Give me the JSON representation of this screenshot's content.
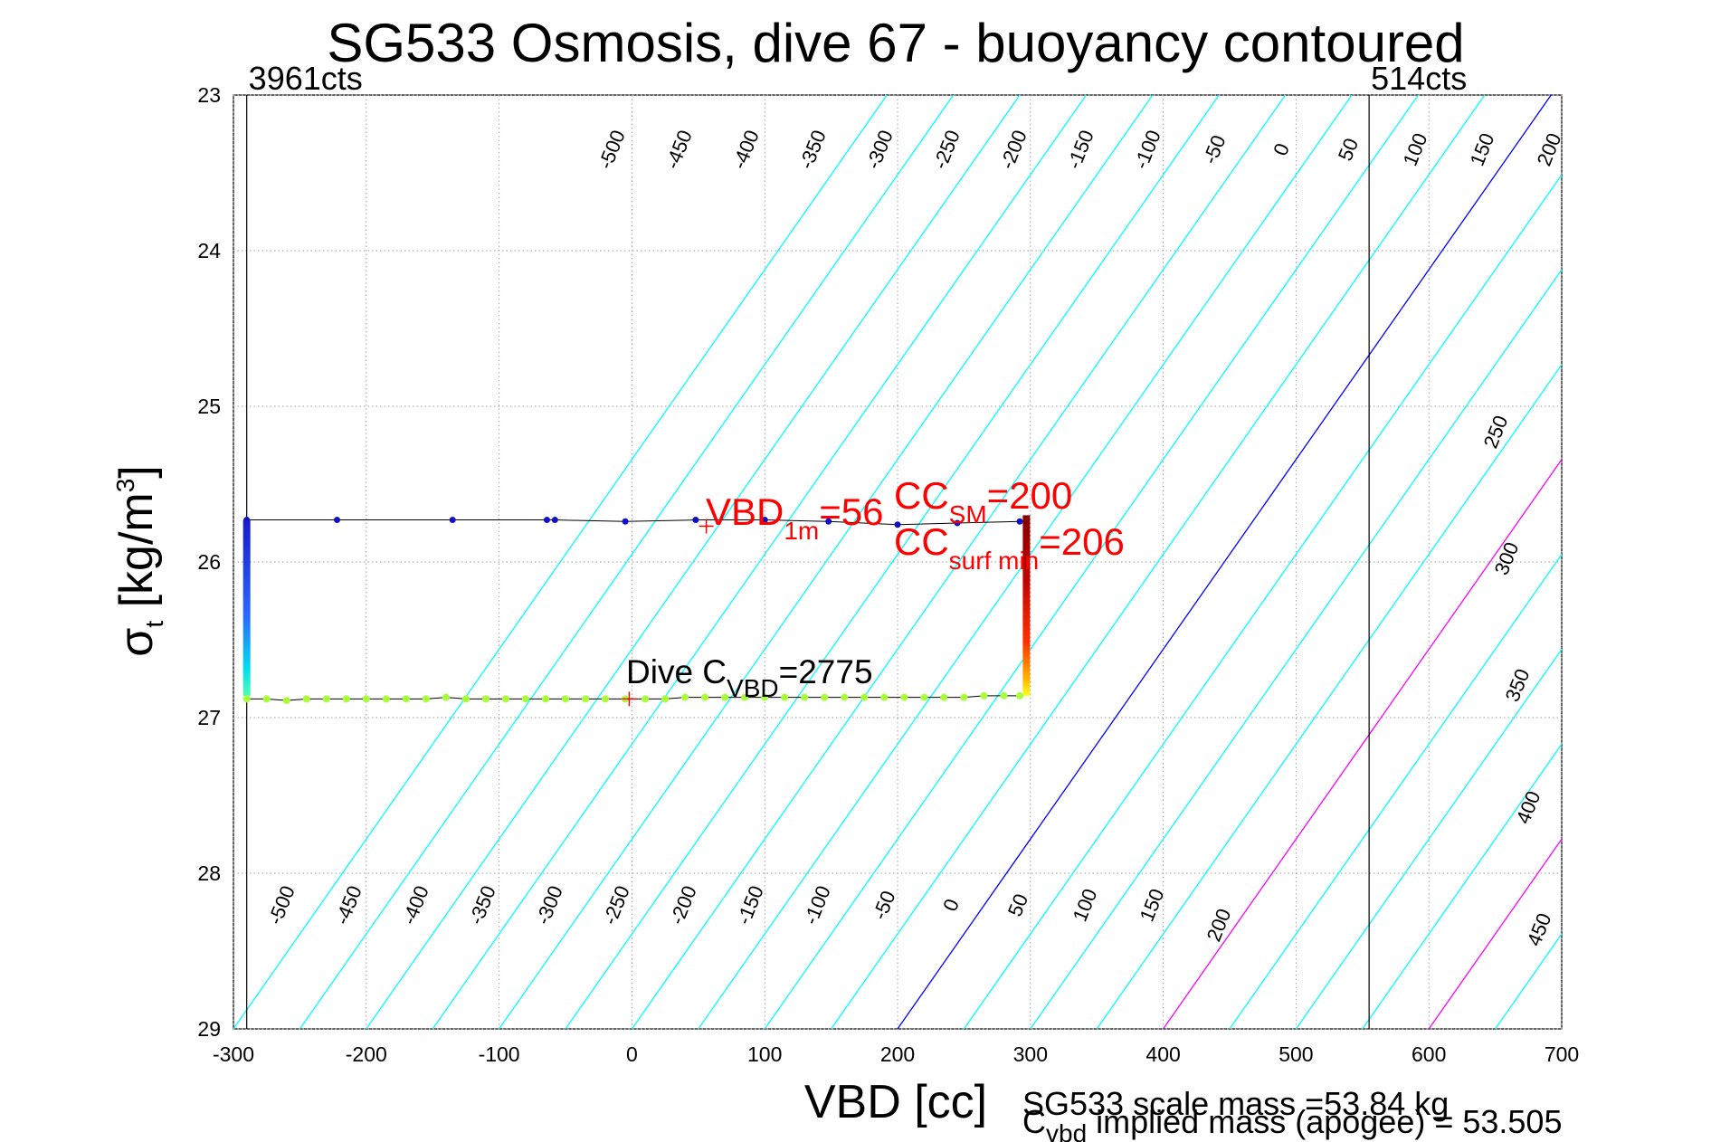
{
  "chart_data": {
    "type": "scatter",
    "title": "SG533 Osmosis, dive 67 - buoyancy contoured",
    "xlabel": "VBD [cc]",
    "ylabel": "σ",
    "ylabel_sub": "t",
    "ylabel_unit": " [kg/m",
    "ylabel_sup": "3",
    "ylabel_close": "]",
    "xlim": [
      -300,
      700
    ],
    "ylim": [
      23,
      29
    ],
    "y_reversed": true,
    "grid": true,
    "xticks": [
      "-300",
      "-200",
      "-100",
      "0",
      "100",
      "200",
      "300",
      "400",
      "500",
      "600",
      "700"
    ],
    "yticks": [
      "23",
      "24",
      "25",
      "26",
      "27",
      "28",
      "29"
    ],
    "vertical_lines": [
      {
        "x": -290,
        "label": "3961cts"
      },
      {
        "x": 555,
        "label": "514cts"
      }
    ],
    "contours": {
      "x_at_29": [
        -300,
        -250,
        -200,
        -150,
        -100,
        -50,
        0,
        50,
        100,
        150,
        200,
        250,
        300,
        350,
        400,
        450,
        500,
        550,
        600,
        650,
        700
      ],
      "slope_cc_per_sigma": -82,
      "colors": {
        "default": "#00ffff",
        "zero": "#0000ff",
        "pos_lines": "#ff00ff"
      },
      "top_labels": [
        "-500",
        "-450",
        "-400",
        "-350",
        "-300",
        "-250",
        "-200",
        "-150",
        "-100",
        "-50",
        "0",
        "50",
        "100",
        "150",
        "200"
      ],
      "right_labels": [
        "250",
        "300",
        "350",
        "400",
        "450"
      ],
      "bottom_labels": [
        "-500",
        "-450",
        "-400",
        "-350",
        "-300",
        "-250",
        "-200",
        "-150",
        "-100",
        "-50",
        "0",
        "50",
        "100",
        "150",
        "200"
      ]
    },
    "series": [
      {
        "points": [
          [
            -290,
            25.73
          ],
          [
            -222,
            25.73
          ],
          [
            -135,
            25.73
          ],
          [
            -64,
            25.73
          ],
          [
            -58,
            25.73
          ],
          [
            -5,
            25.74
          ],
          [
            48,
            25.73
          ],
          [
            100,
            25.73
          ],
          [
            148,
            25.74
          ],
          [
            200,
            25.76
          ],
          [
            245,
            25.75
          ],
          [
            292,
            25.74
          ]
        ]
      },
      {
        "points": [
          [
            -290,
            26.88
          ],
          [
            -275,
            26.88
          ],
          [
            -260,
            26.89
          ],
          [
            -245,
            26.88
          ],
          [
            -230,
            26.88
          ],
          [
            -215,
            26.88
          ],
          [
            -200,
            26.88
          ],
          [
            -185,
            26.88
          ],
          [
            -170,
            26.88
          ],
          [
            -155,
            26.88
          ],
          [
            -140,
            26.87
          ],
          [
            -125,
            26.88
          ],
          [
            -110,
            26.88
          ],
          [
            -95,
            26.88
          ],
          [
            -80,
            26.88
          ],
          [
            -65,
            26.88
          ],
          [
            -50,
            26.88
          ],
          [
            -35,
            26.88
          ],
          [
            -20,
            26.88
          ],
          [
            -5,
            26.88
          ],
          [
            10,
            26.88
          ],
          [
            25,
            26.88
          ],
          [
            40,
            26.87
          ],
          [
            55,
            26.87
          ],
          [
            70,
            26.87
          ],
          [
            85,
            26.87
          ],
          [
            100,
            26.87
          ],
          [
            115,
            26.87
          ],
          [
            130,
            26.87
          ],
          [
            145,
            26.87
          ],
          [
            160,
            26.87
          ],
          [
            175,
            26.87
          ],
          [
            190,
            26.87
          ],
          [
            205,
            26.87
          ],
          [
            220,
            26.87
          ],
          [
            235,
            26.87
          ],
          [
            250,
            26.87
          ],
          [
            265,
            26.86
          ],
          [
            280,
            26.86
          ],
          [
            292,
            26.86
          ]
        ]
      }
    ],
    "markers": [
      {
        "x": 56,
        "y": 25.77,
        "color": "#ff0000"
      },
      {
        "x": -2,
        "y": 26.88,
        "color": "#ff0000"
      }
    ],
    "annotations": {
      "vbd1m": {
        "main": "VBD",
        "sub": "1m",
        "tail": "=56"
      },
      "ccsm": {
        "main": "CC",
        "sub": "SM",
        "tail": "=200"
      },
      "ccsurf": {
        "main": "CC",
        "sub": "surf min",
        "tail": "=206"
      },
      "divec": {
        "main": "Dive C",
        "sub": "VBD",
        "tail": "=2775"
      }
    }
  },
  "footer": {
    "line1": "SG533 scale mass =53.84 kg",
    "line2_main": "C",
    "line2_sub": "vbd",
    "line2_tail": " implied mass (apogee) = 53.505"
  }
}
